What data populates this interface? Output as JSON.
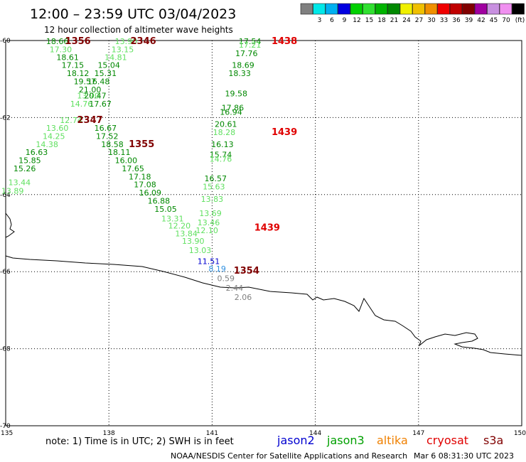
{
  "header": {
    "title": "12:00 – 23:59 UTC 03/04/2023",
    "subtitle": "12 hour collection of altimeter wave heights"
  },
  "legend": {
    "swatches": [
      {
        "color": "#808080",
        "label": ""
      },
      {
        "color": "#00e8e8",
        "label": "3"
      },
      {
        "color": "#00b0f0",
        "label": "6"
      },
      {
        "color": "#0000e0",
        "label": "9"
      },
      {
        "color": "#00d000",
        "label": "12"
      },
      {
        "color": "#30e030",
        "label": "15"
      },
      {
        "color": "#00b400",
        "label": "18"
      },
      {
        "color": "#008800",
        "label": "21"
      },
      {
        "color": "#f0f000",
        "label": "24"
      },
      {
        "color": "#f0c000",
        "label": "27"
      },
      {
        "color": "#f09000",
        "label": "30"
      },
      {
        "color": "#f00000",
        "label": "33"
      },
      {
        "color": "#c00000",
        "label": "36"
      },
      {
        "color": "#800000",
        "label": "39"
      },
      {
        "color": "#a000a0",
        "label": "42"
      },
      {
        "color": "#c890e0",
        "label": "45"
      },
      {
        "color": "#f090f0",
        "label": "70"
      },
      {
        "color": "#000000",
        "label": "(ft)"
      }
    ]
  },
  "axes": {
    "lon_ticks": [
      "135",
      "138",
      "141",
      "144",
      "147",
      "150"
    ],
    "lat_ticks": [
      "-60",
      "-62",
      "-64",
      "-66",
      "-68",
      "-70"
    ]
  },
  "satellites": [
    {
      "name": "jason2",
      "color": "#0000d0"
    },
    {
      "name": "jason3",
      "color": "#00a000"
    },
    {
      "name": "altika",
      "color": "#f08000"
    },
    {
      "name": "cryosat",
      "color": "#e00000"
    },
    {
      "name": "s3a",
      "color": "#800000"
    }
  ],
  "footer": {
    "note": "note: 1) Time is in UTC; 2) SWH is in feet",
    "credit": "NOAA/NESDIS Center for Satellite Applications and Research",
    "timestamp": "Mar  6 08:31:30 UTC 2023"
  },
  "colors": {
    "dark_green": "#008800",
    "mid_green": "#00b000",
    "light_green": "#60e060",
    "blue": "#0000d0",
    "light_blue": "#3090e0",
    "gray": "#808080",
    "red": "#e00000",
    "maroon": "#800000"
  },
  "observations": [
    {
      "v": "18.66",
      "lon": 136.5,
      "lat": -60.02,
      "c": "dark_green"
    },
    {
      "v": "17.30",
      "lon": 136.6,
      "lat": -60.23,
      "c": "light_green"
    },
    {
      "v": "18.61",
      "lon": 136.8,
      "lat": -60.43,
      "c": "dark_green"
    },
    {
      "v": "17.15",
      "lon": 136.95,
      "lat": -60.64,
      "c": "dark_green"
    },
    {
      "v": "18.12",
      "lon": 137.1,
      "lat": -60.85,
      "c": "dark_green"
    },
    {
      "v": "19.57",
      "lon": 137.3,
      "lat": -61.06,
      "c": "dark_green"
    },
    {
      "v": "21.00",
      "lon": 137.45,
      "lat": -61.27,
      "c": "dark_green"
    },
    {
      "v": "13.90",
      "lon": 137.4,
      "lat": -61.43,
      "c": "light_green"
    },
    {
      "v": "14.76",
      "lon": 137.2,
      "lat": -61.64,
      "c": "light_green"
    },
    {
      "v": "12.74",
      "lon": 136.9,
      "lat": -62.07,
      "c": "light_green"
    },
    {
      "v": "13.60",
      "lon": 136.5,
      "lat": -62.27,
      "c": "light_green"
    },
    {
      "v": "14.25",
      "lon": 136.4,
      "lat": -62.48,
      "c": "light_green"
    },
    {
      "v": "14.38",
      "lon": 136.2,
      "lat": -62.69,
      "c": "light_green"
    },
    {
      "v": "16.63",
      "lon": 135.9,
      "lat": -62.9,
      "c": "dark_green"
    },
    {
      "v": "15.85",
      "lon": 135.7,
      "lat": -63.11,
      "c": "dark_green"
    },
    {
      "v": "15.26",
      "lon": 135.55,
      "lat": -63.32,
      "c": "dark_green"
    },
    {
      "v": "13.44",
      "lon": 135.4,
      "lat": -63.68,
      "c": "light_green"
    },
    {
      "v": "13.89",
      "lon": 135.2,
      "lat": -63.9,
      "c": "light_green"
    },
    {
      "v": "13.90",
      "lon": 138.5,
      "lat": -60.02,
      "c": "light_green"
    },
    {
      "v": "13.15",
      "lon": 138.4,
      "lat": -60.23,
      "c": "light_green"
    },
    {
      "v": "14.81",
      "lon": 138.2,
      "lat": -60.43,
      "c": "light_green"
    },
    {
      "v": "15.04",
      "lon": 138.0,
      "lat": -60.64,
      "c": "dark_green"
    },
    {
      "v": "15.31",
      "lon": 137.9,
      "lat": -60.85,
      "c": "dark_green"
    },
    {
      "v": "16.48",
      "lon": 137.7,
      "lat": -61.06,
      "c": "dark_green"
    },
    {
      "v": "20.47",
      "lon": 137.6,
      "lat": -61.43,
      "c": "dark_green"
    },
    {
      "v": "17.67",
      "lon": 137.75,
      "lat": -61.64,
      "c": "dark_green"
    },
    {
      "v": "16.67",
      "lon": 137.9,
      "lat": -62.27,
      "c": "dark_green"
    },
    {
      "v": "17.52",
      "lon": 137.95,
      "lat": -62.48,
      "c": "dark_green"
    },
    {
      "v": "18.58",
      "lon": 138.1,
      "lat": -62.69,
      "c": "dark_green"
    },
    {
      "v": "18.11",
      "lon": 138.3,
      "lat": -62.9,
      "c": "dark_green"
    },
    {
      "v": "16.00",
      "lon": 138.5,
      "lat": -63.11,
      "c": "dark_green"
    },
    {
      "v": "17.65",
      "lon": 138.7,
      "lat": -63.32,
      "c": "dark_green"
    },
    {
      "v": "17.18",
      "lon": 138.9,
      "lat": -63.53,
      "c": "dark_green"
    },
    {
      "v": "17.08",
      "lon": 139.05,
      "lat": -63.74,
      "c": "dark_green"
    },
    {
      "v": "16.09",
      "lon": 139.2,
      "lat": -63.95,
      "c": "dark_green"
    },
    {
      "v": "16.88",
      "lon": 139.45,
      "lat": -64.16,
      "c": "dark_green"
    },
    {
      "v": "15.05",
      "lon": 139.65,
      "lat": -64.37,
      "c": "dark_green"
    },
    {
      "v": "13.31",
      "lon": 139.85,
      "lat": -64.62,
      "c": "light_green"
    },
    {
      "v": "12.20",
      "lon": 140.05,
      "lat": -64.81,
      "c": "light_green"
    },
    {
      "v": "13.84",
      "lon": 140.25,
      "lat": -65.01,
      "c": "light_green"
    },
    {
      "v": "13.90",
      "lon": 140.45,
      "lat": -65.2,
      "c": "light_green"
    },
    {
      "v": "13.03",
      "lon": 140.65,
      "lat": -65.44,
      "c": "light_green"
    },
    {
      "v": "11.51",
      "lon": 140.9,
      "lat": -65.73,
      "c": "blue"
    },
    {
      "v": "8.19",
      "lon": 141.15,
      "lat": -65.92,
      "c": "light_blue"
    },
    {
      "v": "0.59",
      "lon": 141.4,
      "lat": -66.17,
      "c": "gray"
    },
    {
      "v": "2.44",
      "lon": 141.65,
      "lat": -66.42,
      "c": "gray"
    },
    {
      "v": "2.06",
      "lon": 141.9,
      "lat": -66.66,
      "c": "gray"
    },
    {
      "v": "17.54",
      "lon": 142.1,
      "lat": -60.02,
      "c": "dark_green"
    },
    {
      "v": "17.21",
      "lon": 142.1,
      "lat": -60.11,
      "c": "light_green"
    },
    {
      "v": "17.76",
      "lon": 142.0,
      "lat": -60.33,
      "c": "dark_green"
    },
    {
      "v": "18.69",
      "lon": 141.9,
      "lat": -60.64,
      "c": "dark_green"
    },
    {
      "v": "18.33",
      "lon": 141.8,
      "lat": -60.85,
      "c": "dark_green"
    },
    {
      "v": "19.58",
      "lon": 141.7,
      "lat": -61.37,
      "c": "dark_green"
    },
    {
      "v": "17.86",
      "lon": 141.6,
      "lat": -61.74,
      "c": "dark_green"
    },
    {
      "v": "16.94",
      "lon": 141.55,
      "lat": -61.85,
      "c": "dark_green"
    },
    {
      "v": "20.61",
      "lon": 141.4,
      "lat": -62.17,
      "c": "dark_green"
    },
    {
      "v": "18.28",
      "lon": 141.35,
      "lat": -62.38,
      "c": "light_green"
    },
    {
      "v": "16.13",
      "lon": 141.3,
      "lat": -62.69,
      "c": "dark_green"
    },
    {
      "v": "15.74",
      "lon": 141.25,
      "lat": -62.96,
      "c": "dark_green"
    },
    {
      "v": "14.76",
      "lon": 141.25,
      "lat": -63.07,
      "c": "light_green"
    },
    {
      "v": "16.57",
      "lon": 141.1,
      "lat": -63.58,
      "c": "dark_green"
    },
    {
      "v": "15.63",
      "lon": 141.05,
      "lat": -63.79,
      "c": "light_green"
    },
    {
      "v": "13.83",
      "lon": 141.0,
      "lat": -64.11,
      "c": "light_green"
    },
    {
      "v": "13.69",
      "lon": 140.95,
      "lat": -64.48,
      "c": "light_green"
    },
    {
      "v": "13.46",
      "lon": 140.9,
      "lat": -64.72,
      "c": "light_green"
    },
    {
      "v": "12.10",
      "lon": 140.85,
      "lat": -64.93,
      "c": "light_green"
    },
    {
      "v": "1356",
      "lon": 137.1,
      "lat": -60.02,
      "c": "maroon"
    },
    {
      "v": "2346",
      "lon": 139.0,
      "lat": -60.02,
      "c": "maroon"
    },
    {
      "v": "2347",
      "lon": 137.45,
      "lat": -62.07,
      "c": "maroon"
    },
    {
      "v": "1355",
      "lon": 138.95,
      "lat": -62.69,
      "c": "maroon"
    },
    {
      "v": "1354",
      "lon": 142.0,
      "lat": -65.98,
      "c": "maroon"
    },
    {
      "v": "1438",
      "lon": 143.1,
      "lat": -60.02,
      "c": "red"
    },
    {
      "v": "1439",
      "lon": 143.1,
      "lat": -62.38,
      "c": "red"
    },
    {
      "v": "1439",
      "lon": 142.6,
      "lat": -64.86,
      "c": "red"
    }
  ]
}
